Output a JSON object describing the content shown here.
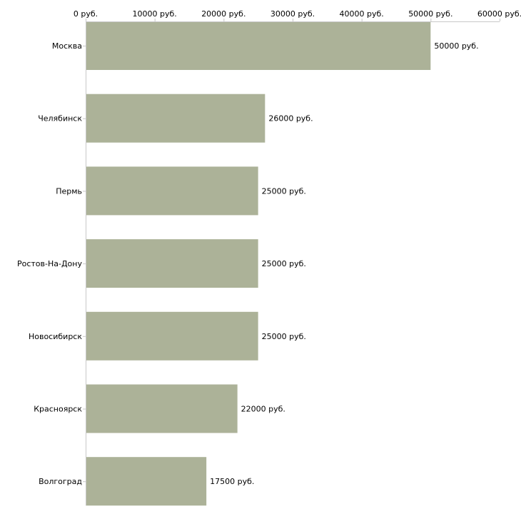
{
  "chart_data": {
    "type": "bar",
    "orientation": "horizontal",
    "title": "",
    "xlabel": "",
    "ylabel": "",
    "xlim": [
      0,
      60000
    ],
    "ticks": [
      0,
      10000,
      20000,
      30000,
      40000,
      50000,
      60000
    ],
    "tick_labels": [
      "0 руб.",
      "10000 руб.",
      "20000 руб.",
      "30000 руб.",
      "40000 руб.",
      "50000 руб.",
      "60000 руб."
    ],
    "categories": [
      "Москва",
      "Челябинск",
      "Пермь",
      "Ростов-На-Дону",
      "Новосибирск",
      "Красноярск",
      "Волгоград"
    ],
    "values": [
      50000,
      26000,
      25000,
      25000,
      25000,
      22000,
      17500
    ],
    "value_labels": [
      "50000 руб.",
      "26000 руб.",
      "25000 руб.",
      "25000 руб.",
      "25000 руб.",
      "22000 руб.",
      "17500 руб."
    ],
    "bar_color": "#acb298",
    "axis_color": "#c8c8c8",
    "x_axis_position": "top",
    "grid": false
  }
}
